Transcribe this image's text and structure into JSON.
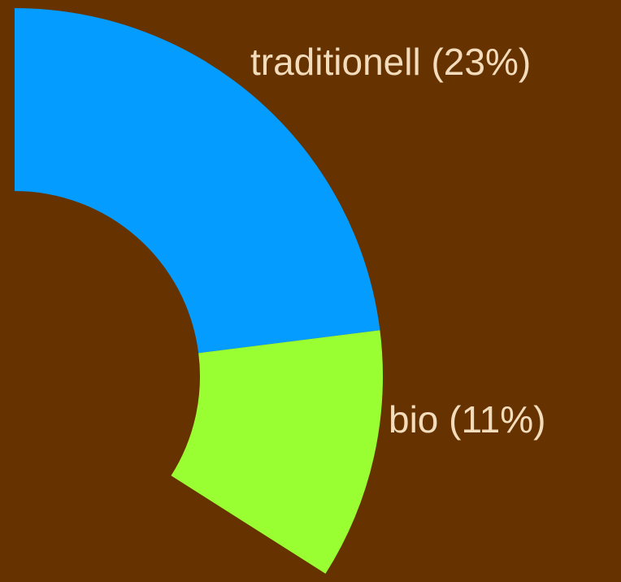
{
  "chart_data": {
    "type": "donut",
    "categories": [
      "traditionell",
      "bio"
    ],
    "values": [
      23,
      11
    ],
    "value_labels": [
      "traditionell (23%)",
      "bio (11%)"
    ],
    "colors": [
      "#049cff",
      "#99ff33"
    ]
  }
}
